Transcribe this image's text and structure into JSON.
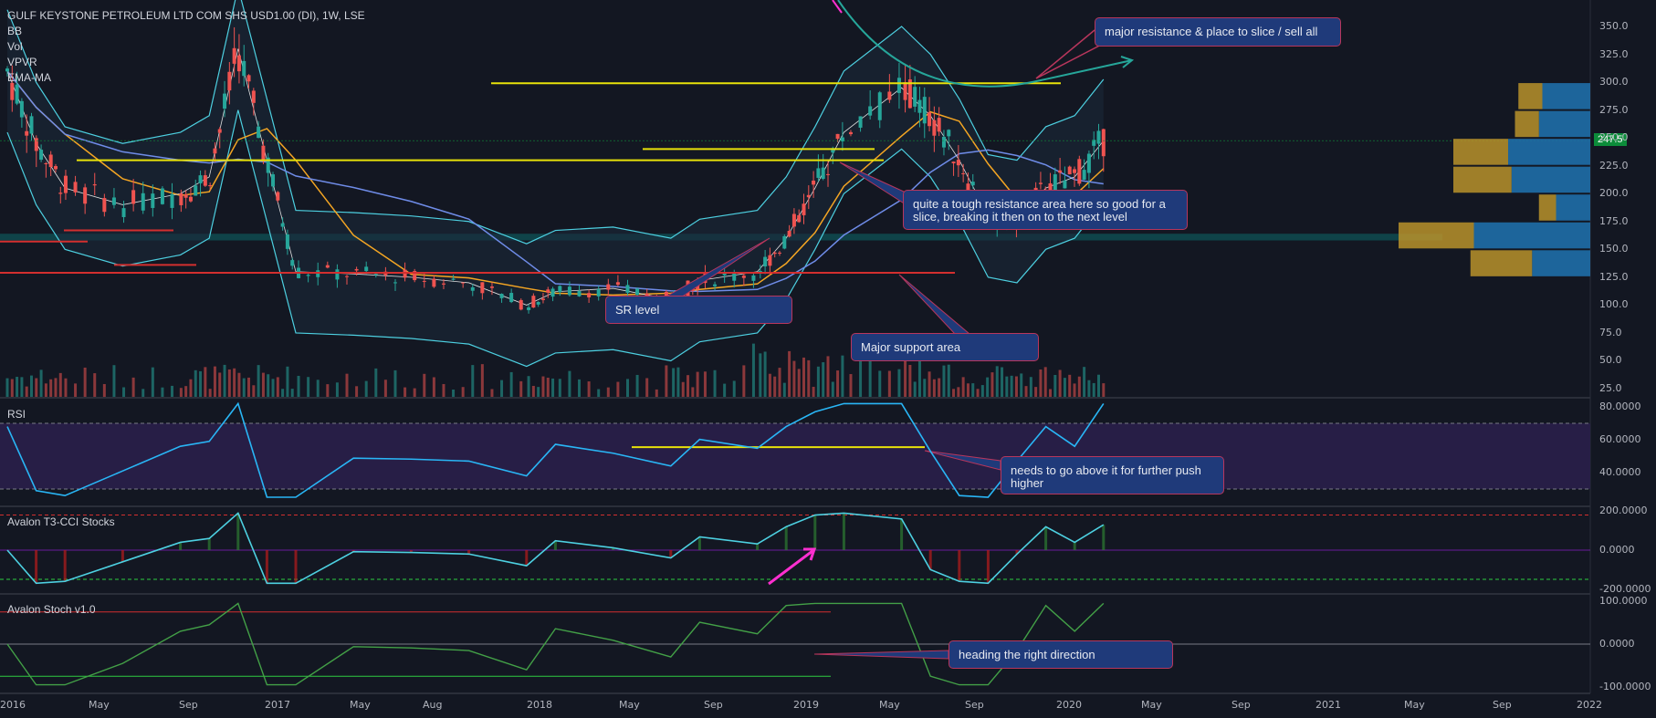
{
  "header": {
    "symbol_title": "GULF KEYSTONE PETROLEUM LTD COM SHS USD1.00 (DI), 1W, LSE",
    "studies": [
      "BB",
      "Vol",
      "VPVR",
      "EMA-MA"
    ]
  },
  "panes": {
    "rsi_title": "RSI",
    "cci_title": "Avalon T3-CCI Stocks",
    "stoch_title": "Avalon Stoch v1.0"
  },
  "callouts": {
    "major_resistance": "major resistance & place to slice / sell all",
    "tough_resistance": "quite a tough resistance area here so good for a slice, breaking it then on to the next level",
    "sr_level": "SR level",
    "major_support": "Major support area",
    "rsi_note": "needs to go above it for further push higher",
    "stoch_note": "heading the right direction"
  },
  "last_price": "247.5",
  "colors": {
    "background": "#131722",
    "bull": "#26a69a",
    "bear": "#ef5350",
    "yellow_line": "#e8e20a",
    "red_line": "#d32f2f",
    "bb": "#4dd0e1",
    "ema_orange": "#f5a623",
    "ma_blue": "#6f8ce8",
    "callout_bg": "#1f3a7a",
    "callout_border": "#b8365c",
    "arrow_teal": "#26a69a",
    "magenta": "#ff2fd0"
  },
  "chart_data": [
    {
      "type": "candlestick",
      "title": "GULF KEYSTONE PETROLEUM LTD COM SHS USD1.00 (DI), 1W, LSE",
      "ylim": [
        25,
        362
      ],
      "y_ticks": [
        "350.0",
        "325.0",
        "300.0",
        "275.0",
        "250.0",
        "225.0",
        "200.0",
        "175.0",
        "150.0",
        "125.0",
        "100.0",
        "75.0",
        "50.0",
        "25.0"
      ],
      "x_ticks": [
        "2016",
        "May",
        "Sep",
        "2017",
        "May",
        "Aug",
        "2018",
        "May",
        "Sep",
        "2019",
        "May",
        "Sep",
        "2020",
        "May",
        "Sep",
        "2021",
        "May",
        "Sep",
        "2022"
      ],
      "approx_close_path": [
        {
          "x": "2016-01",
          "y": 310
        },
        {
          "x": "2016-02",
          "y": 245
        },
        {
          "x": "2016-03",
          "y": 205
        },
        {
          "x": "2016-05",
          "y": 190
        },
        {
          "x": "2016-07",
          "y": 200
        },
        {
          "x": "2016-08",
          "y": 215
        },
        {
          "x": "2016-09",
          "y": 330
        },
        {
          "x": "2016-10",
          "y": 230
        },
        {
          "x": "2016-11",
          "y": 130
        },
        {
          "x": "2017-01",
          "y": 128
        },
        {
          "x": "2017-03",
          "y": 125
        },
        {
          "x": "2017-05",
          "y": 120
        },
        {
          "x": "2017-07",
          "y": 100
        },
        {
          "x": "2017-08",
          "y": 112
        },
        {
          "x": "2017-10",
          "y": 115
        },
        {
          "x": "2017-12",
          "y": 105
        },
        {
          "x": "2018-01",
          "y": 122
        },
        {
          "x": "2018-03",
          "y": 130
        },
        {
          "x": "2018-04",
          "y": 160
        },
        {
          "x": "2018-05",
          "y": 205
        },
        {
          "x": "2018-06",
          "y": 255
        },
        {
          "x": "2018-08",
          "y": 295
        },
        {
          "x": "2018-09",
          "y": 270
        },
        {
          "x": "2018-10",
          "y": 230
        },
        {
          "x": "2018-11",
          "y": 180
        },
        {
          "x": "2018-12",
          "y": 175
        },
        {
          "x": "2019-01",
          "y": 205
        },
        {
          "x": "2019-02",
          "y": 215
        },
        {
          "x": "2019-03",
          "y": 247.5
        }
      ],
      "levels": [
        {
          "name": "major resistance",
          "value": 299
        },
        {
          "name": "resistance area upper",
          "value": 240
        },
        {
          "name": "resistance area lower",
          "value": 230
        },
        {
          "name": "SR zone",
          "range": [
            158,
            164
          ]
        },
        {
          "name": "major support",
          "value": 129
        },
        {
          "name": "red line 1",
          "value": 167
        },
        {
          "name": "red line 2",
          "value": 157
        },
        {
          "name": "red line 3",
          "value": 136
        }
      ],
      "volume_profile": [
        {
          "price_band": [
            275,
            300
          ],
          "buy": 0.35,
          "sell": 0.7
        },
        {
          "price_band": [
            250,
            275
          ],
          "buy": 0.35,
          "sell": 0.75
        },
        {
          "price_band": [
            225,
            250
          ],
          "buy": 0.8,
          "sell": 1.2
        },
        {
          "price_band": [
            200,
            225
          ],
          "buy": 0.85,
          "sell": 1.15
        },
        {
          "price_band": [
            175,
            200
          ],
          "buy": 0.25,
          "sell": 0.5
        },
        {
          "price_band": [
            150,
            175
          ],
          "buy": 1.1,
          "sell": 1.7
        },
        {
          "price_band": [
            125,
            150
          ],
          "buy": 0.9,
          "sell": 0.85
        }
      ]
    },
    {
      "type": "line",
      "title": "RSI",
      "ylim": [
        20,
        85
      ],
      "y_ticks": [
        "80.0000",
        "60.0000",
        "40.0000"
      ],
      "levels": [
        70,
        30,
        55.5
      ]
    },
    {
      "type": "line",
      "title": "Avalon T3-CCI Stocks",
      "y_ticks": [
        "200.0000",
        "0.0000",
        "-200.0000"
      ],
      "levels": [
        180,
        0,
        -150
      ]
    },
    {
      "type": "line",
      "title": "Avalon Stoch v1.0",
      "y_ticks": [
        "100.0000",
        "0.0000",
        "-100.0000"
      ],
      "levels": [
        75,
        0,
        -75
      ]
    }
  ]
}
